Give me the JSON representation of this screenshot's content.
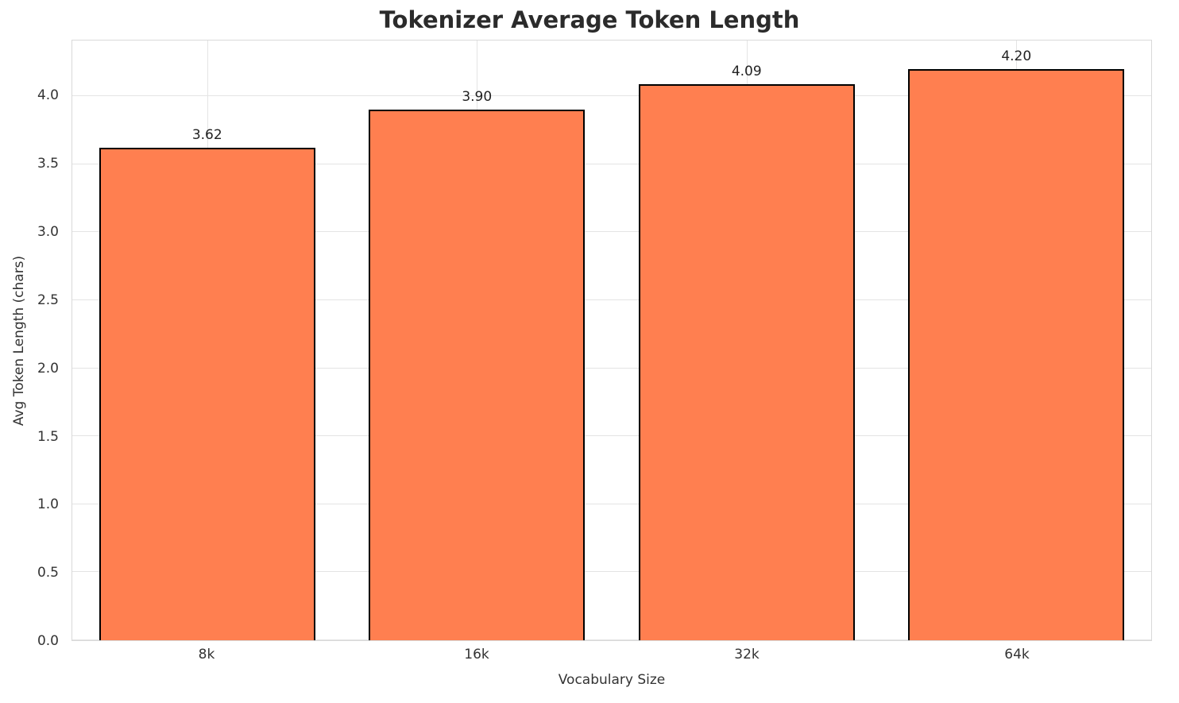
{
  "chart_data": {
    "type": "bar",
    "title": "Tokenizer Average Token Length",
    "xlabel": "Vocabulary Size",
    "ylabel": "Avg Token Length (chars)",
    "categories": [
      "8k",
      "16k",
      "32k",
      "64k"
    ],
    "values": [
      3.62,
      3.9,
      4.09,
      4.2
    ],
    "bar_labels": [
      "3.62",
      "3.90",
      "4.09",
      "4.20"
    ],
    "ylim": [
      0,
      4.41
    ],
    "yticks": [
      0.0,
      0.5,
      1.0,
      1.5,
      2.0,
      2.5,
      3.0,
      3.5,
      4.0
    ],
    "ytick_labels": [
      "0.0",
      "0.5",
      "1.0",
      "1.5",
      "2.0",
      "2.5",
      "3.0",
      "3.5",
      "4.0"
    ],
    "grid": true,
    "bar_color": "#FF7F50",
    "bar_edge_color": "#000000"
  }
}
